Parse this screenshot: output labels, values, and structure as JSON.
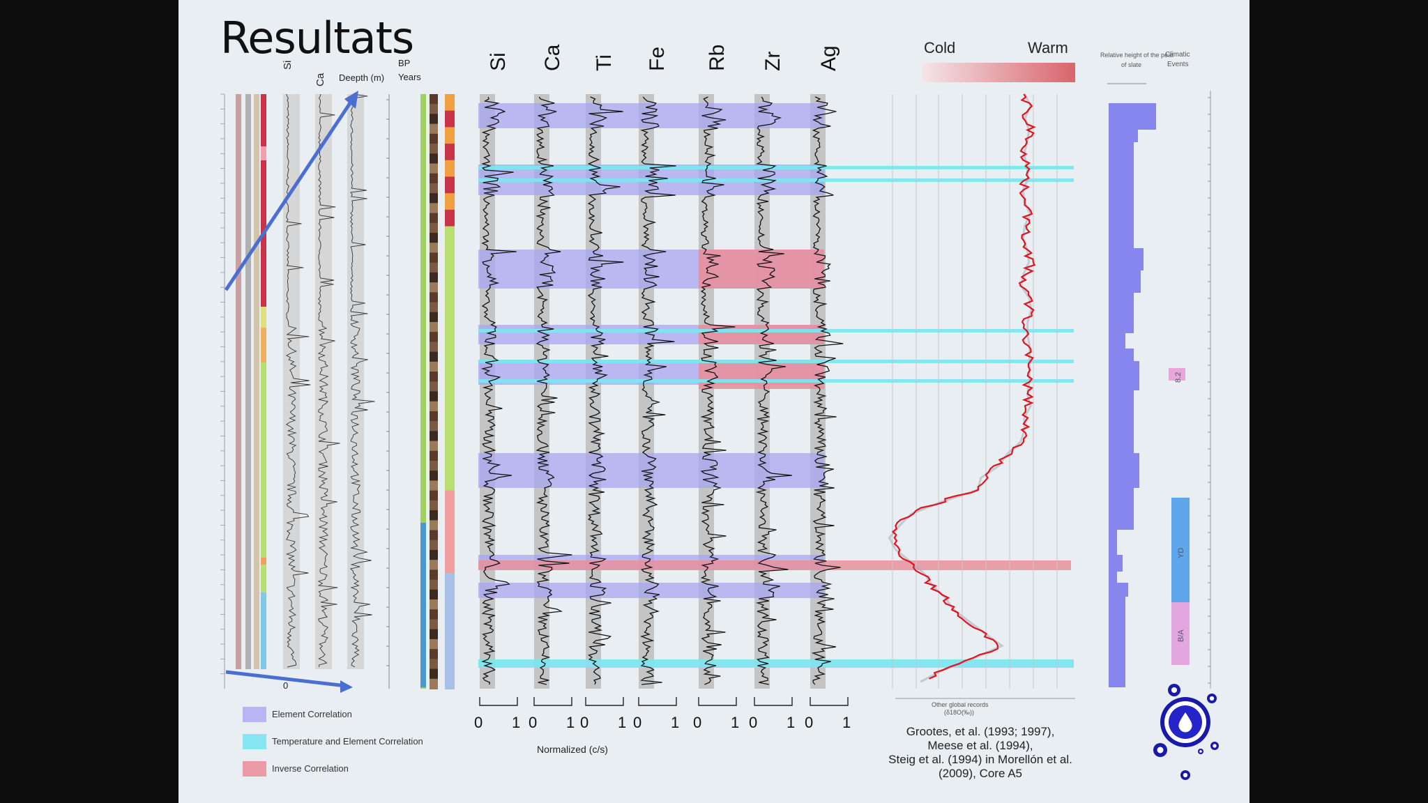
{
  "slide": {
    "title": "Resultats"
  },
  "left_panel": {
    "depth_label": "Deepth (m)",
    "bp_label": "BP",
    "years_label": "Years",
    "col_si": "Si",
    "col_ca": "Ca",
    "axis_zero": "0"
  },
  "elements": [
    "Si",
    "Ca",
    "Ti",
    "Fe",
    "Rb",
    "Zr",
    "Ag"
  ],
  "axis": {
    "zero": "0",
    "one": "1",
    "xlabel": "Normalized (c/s)"
  },
  "temperature": {
    "cold_label": "Cold",
    "warm_label": "Warm",
    "xlabel_line1": "Other global records",
    "xlabel_line2": "(δ18O(‰))"
  },
  "right_panel": {
    "header_left": "Relative height of the peat",
    "header_left2": "of slate",
    "header_right": "Climatic",
    "header_right2": "Events",
    "events": [
      {
        "label": "8.2",
        "color": "#e9a6d8"
      },
      {
        "label": "YD",
        "color": "#5fa6ea"
      },
      {
        "label": "B/A",
        "color": "#e4a6de"
      }
    ]
  },
  "legend": [
    {
      "label": "Element Correlation",
      "color": "#b7b5f3"
    },
    {
      "label": "Temperature and Element Correlation",
      "color": "#86e6f2"
    },
    {
      "label": "Inverse Correlation",
      "color": "#eb9ba8"
    }
  ],
  "reference": [
    "Grootes, et al. (1993; 1997),",
    "Meese et al. (1994),",
    "Steig et al. (1994) in Morellón et al.",
    "(2009), Core A5"
  ],
  "colors": {
    "element_corr": "#a8a6f0",
    "temp_corr": "#80e4f0",
    "inverse_corr": "#e8909c",
    "temperature_line": "#e0141e",
    "bars": "#8785ee"
  },
  "chart_data": {
    "type": "line",
    "title": "",
    "xlabel": "Normalized (c/s)",
    "ylabel": "",
    "series": [
      {
        "name": "Si",
        "range": [
          0,
          1
        ]
      },
      {
        "name": "Ca",
        "range": [
          0,
          1
        ]
      },
      {
        "name": "Ti",
        "range": [
          0,
          1
        ]
      },
      {
        "name": "Fe",
        "range": [
          0,
          1
        ]
      },
      {
        "name": "Rb",
        "range": [
          0,
          1
        ]
      },
      {
        "name": "Zr",
        "range": [
          0,
          1
        ]
      },
      {
        "name": "Ag",
        "range": [
          0,
          1
        ]
      }
    ],
    "temperature_profile": [
      0.78,
      0.8,
      0.79,
      0.82,
      0.8,
      0.78,
      0.8,
      0.79,
      0.77,
      0.8,
      0.81,
      0.78,
      0.79,
      0.8,
      0.82,
      0.79,
      0.77,
      0.8,
      0.81,
      0.79,
      0.78,
      0.8,
      0.82,
      0.79,
      0.8,
      0.81,
      0.8,
      0.78,
      0.79,
      0.76,
      0.7,
      0.62,
      0.55,
      0.5,
      0.3,
      0.12,
      0.05,
      0.02,
      0.06,
      0.12,
      0.2,
      0.25,
      0.32,
      0.38,
      0.45,
      0.55,
      0.65,
      0.5,
      0.3,
      0.2
    ]
  }
}
